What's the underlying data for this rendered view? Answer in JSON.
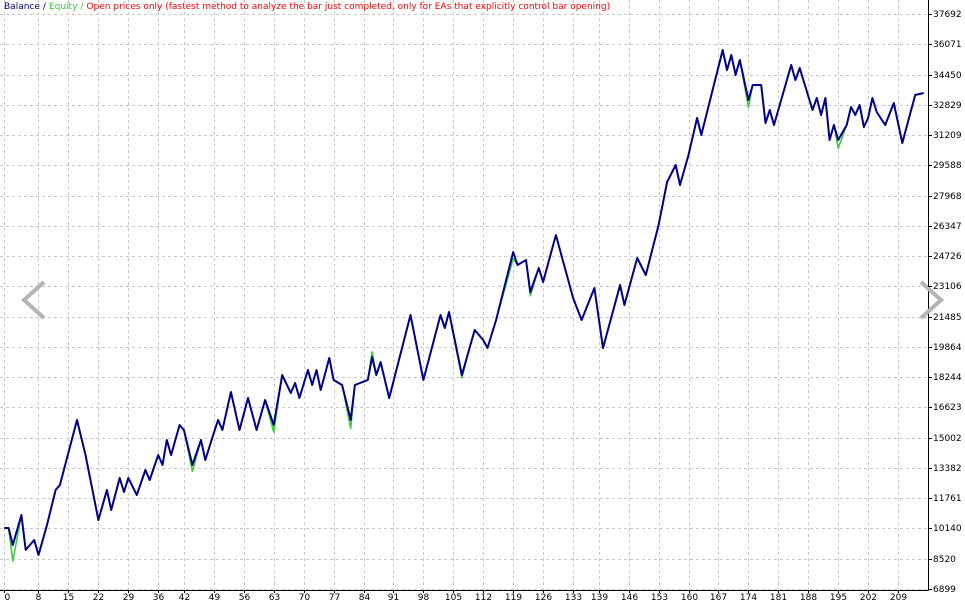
{
  "chart_data": {
    "type": "line",
    "legend_separator": "/",
    "subtitle": "Open prices only (fastest method to analyze the bar just completed, only for EAs that explicitly control bar opening)",
    "subtitle_color": "#ff0000",
    "grid": true,
    "xlim": [
      -1,
      216
    ],
    "xticks": [
      0,
      8,
      15,
      22,
      29,
      36,
      42,
      49,
      56,
      63,
      70,
      77,
      84,
      91,
      98,
      105,
      112,
      119,
      126,
      133,
      139,
      146,
      153,
      160,
      167,
      174,
      181,
      188,
      195,
      202,
      209
    ],
    "ylim": [
      6845,
      38442
    ],
    "yticks": [
      6899,
      8520,
      10140,
      11761,
      13382,
      15002,
      16623,
      18244,
      19864,
      21485,
      23106,
      24726,
      26347,
      27968,
      29588,
      31209,
      32829,
      34450,
      36071,
      37692
    ],
    "x": [
      0,
      1,
      2,
      4,
      5,
      7,
      8,
      10,
      12,
      13,
      17,
      19,
      22,
      24,
      25,
      27,
      28,
      29,
      31,
      33,
      34,
      36,
      37,
      38,
      39,
      41,
      42,
      44,
      46,
      47,
      49,
      50,
      51,
      53,
      55,
      57,
      59,
      61,
      63,
      65,
      67,
      68,
      69,
      71,
      72,
      73,
      74,
      76,
      77,
      79,
      81,
      82,
      85,
      86,
      87,
      88,
      90,
      95,
      98,
      102,
      103,
      104,
      107,
      109,
      110,
      112,
      113,
      115,
      119,
      120,
      122,
      123,
      125,
      126,
      129,
      133,
      135,
      138,
      140,
      144,
      145,
      148,
      150,
      153,
      155,
      157,
      158,
      160,
      162,
      163,
      168,
      169,
      170,
      171,
      172,
      174,
      175,
      177,
      178,
      179,
      180,
      184,
      185,
      186,
      189,
      190,
      191,
      192,
      193,
      194,
      195,
      197,
      198,
      199,
      200,
      201,
      202,
      203,
      204,
      206,
      208,
      210,
      213,
      215
    ],
    "series": [
      {
        "name": "Equity",
        "color": "#32cd32",
        "values": [
          10168,
          10168,
          8400,
          10864,
          8990,
          9525,
          8722,
          10328,
          12203,
          12470,
          15951,
          14077,
          10596,
          12203,
          11131,
          12845,
          12095,
          12845,
          11935,
          13274,
          12738,
          14077,
          13541,
          14880,
          14077,
          15683,
          15416,
          13200,
          14880,
          13809,
          15255,
          15951,
          15416,
          17450,
          15416,
          17129,
          15416,
          17022,
          15300,
          18361,
          17397,
          17932,
          17129,
          18629,
          17825,
          18629,
          17558,
          19271,
          18093,
          17825,
          15500,
          17825,
          18093,
          19600,
          18361,
          19057,
          17129,
          21574,
          18093,
          21574,
          20878,
          21734,
          18200,
          19967,
          20770,
          20235,
          19807,
          21306,
          24600,
          24251,
          24519,
          22600,
          24091,
          23341,
          25858,
          22484,
          21306,
          23020,
          19807,
          23180,
          22109,
          24626,
          23716,
          26393,
          28696,
          29606,
          28535,
          30142,
          32123,
          31213,
          35764,
          34693,
          35497,
          34426,
          35229,
          32700,
          33890,
          33890,
          31855,
          32551,
          31748,
          34961,
          34158,
          34801,
          32551,
          33194,
          32284,
          33194,
          30945,
          31748,
          30500,
          31748,
          32712,
          32284,
          32819,
          31641,
          32123,
          33194,
          32444,
          31748,
          32926,
          30784,
          33355,
          33462
        ]
      },
      {
        "name": "Balance",
        "color": "#00008b",
        "values": [
          10168,
          10168,
          9257,
          10864,
          8990,
          9525,
          8722,
          10328,
          12203,
          12470,
          15951,
          14077,
          10596,
          12203,
          11131,
          12845,
          12095,
          12845,
          11935,
          13274,
          12738,
          14077,
          13541,
          14880,
          14077,
          15683,
          15416,
          13541,
          14880,
          13809,
          15255,
          15951,
          15416,
          17450,
          15416,
          17129,
          15416,
          17022,
          15683,
          18361,
          17397,
          17932,
          17129,
          18629,
          17825,
          18629,
          17558,
          19271,
          18093,
          17825,
          15951,
          17825,
          18093,
          19325,
          18361,
          19057,
          17129,
          21574,
          18093,
          21574,
          20878,
          21734,
          18361,
          19967,
          20770,
          20235,
          19807,
          21306,
          24947,
          24251,
          24519,
          22805,
          24091,
          23341,
          25858,
          22484,
          21306,
          23020,
          19807,
          23180,
          22109,
          24626,
          23716,
          26393,
          28696,
          29606,
          28535,
          30142,
          32123,
          31213,
          35764,
          34693,
          35497,
          34426,
          35229,
          33087,
          33890,
          33890,
          31855,
          32551,
          31748,
          34961,
          34158,
          34801,
          32551,
          33194,
          32284,
          33194,
          30945,
          31748,
          30945,
          31748,
          32712,
          32284,
          32819,
          31641,
          32123,
          33194,
          32444,
          31748,
          32926,
          30784,
          33355,
          33462
        ]
      }
    ]
  }
}
